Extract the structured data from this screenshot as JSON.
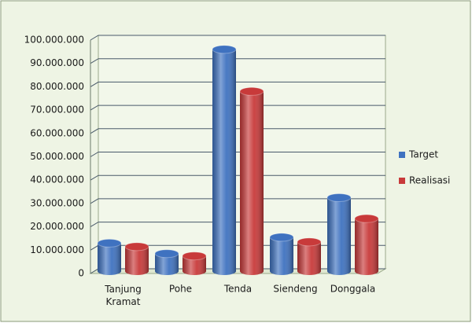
{
  "chart_data": {
    "type": "bar",
    "categories": [
      "Tanjung Kramat",
      "Pohe",
      "Tenda",
      "Siendeng",
      "Donggala"
    ],
    "series": [
      {
        "name": "Target",
        "color": "#3f72c0",
        "values": [
          12000000,
          7500000,
          95000000,
          14500000,
          31500000
        ]
      },
      {
        "name": "Realisasi",
        "color": "#c83a3a",
        "values": [
          10500000,
          6500000,
          77000000,
          12500000,
          22500000
        ]
      }
    ],
    "ylim": [
      0,
      100000000
    ],
    "yticks": [
      0,
      {
        "value": 10000000,
        "label": "10.000.000"
      },
      {
        "value": 20000000,
        "label": "20.000.000"
      },
      {
        "value": 30000000,
        "label": "30.000.000"
      },
      {
        "value": 40000000,
        "label": "40.000.000"
      },
      {
        "value": 50000000,
        "label": "50.000.000"
      },
      {
        "value": 60000000,
        "label": "60.000.000"
      },
      {
        "value": 70000000,
        "label": "70.000.000"
      },
      {
        "value": 80000000,
        "label": "80.000.000"
      },
      {
        "value": 90000000,
        "label": "90.000.000"
      },
      {
        "value": 100000000,
        "label": "100.000.000"
      }
    ],
    "grid": true,
    "legend": "right"
  }
}
